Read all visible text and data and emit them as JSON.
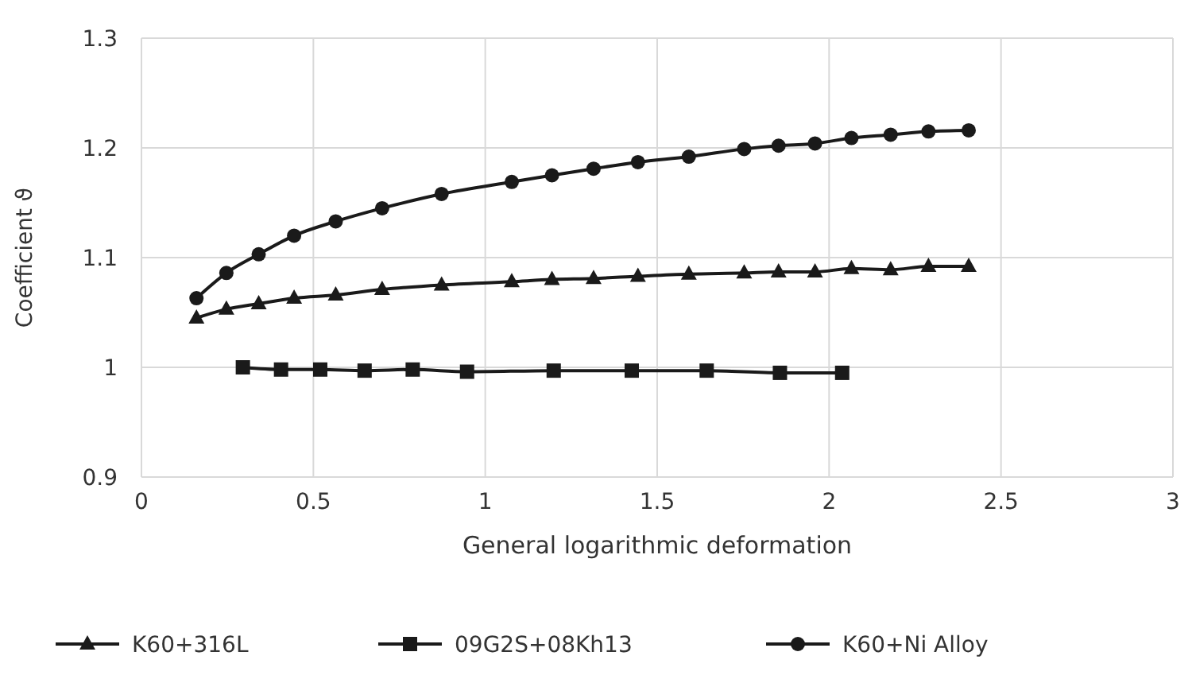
{
  "chart_data": {
    "type": "line",
    "xlabel": "General logarithmic deformation",
    "ylabel": "Coefficient ϑ",
    "xlim": [
      0,
      3
    ],
    "xticks": [
      0,
      0.5,
      1,
      1.5,
      2,
      2.5,
      3
    ],
    "ylim": [
      0.9,
      1.3
    ],
    "yticks": [
      0.9,
      1,
      1.1,
      1.2,
      1.3
    ],
    "grid": true,
    "legend": "bottom",
    "line_style": "solid",
    "series": [
      {
        "name": "K60+316L",
        "color": "#1a1a1a",
        "marker": "triangle",
        "x": [
          0.16,
          0.247,
          0.341,
          0.444,
          0.565,
          0.7,
          0.873,
          1.077,
          1.194,
          1.315,
          1.444,
          1.592,
          1.753,
          1.853,
          1.959,
          2.065,
          2.179,
          2.289,
          2.406
        ],
        "values": [
          1.045,
          1.053,
          1.058,
          1.063,
          1.066,
          1.071,
          1.075,
          1.078,
          1.08,
          1.081,
          1.083,
          1.085,
          1.086,
          1.087,
          1.087,
          1.09,
          1.089,
          1.092,
          1.092
        ]
      },
      {
        "name": "09G2S+08Kh13",
        "color": "#1a1a1a",
        "marker": "square",
        "x": [
          0.295,
          0.406,
          0.52,
          0.649,
          0.789,
          0.947,
          1.199,
          1.426,
          1.644,
          1.857,
          2.038
        ],
        "values": [
          1.0,
          0.998,
          0.998,
          0.997,
          0.998,
          0.996,
          0.997,
          0.997,
          0.997,
          0.995,
          0.995
        ]
      },
      {
        "name": "K60+Ni Alloy",
        "color": "#1a1a1a",
        "marker": "circle",
        "x": [
          0.16,
          0.247,
          0.341,
          0.444,
          0.565,
          0.7,
          0.873,
          1.077,
          1.194,
          1.315,
          1.444,
          1.592,
          1.753,
          1.853,
          1.959,
          2.065,
          2.179,
          2.289,
          2.406
        ],
        "values": [
          1.063,
          1.086,
          1.103,
          1.12,
          1.133,
          1.145,
          1.158,
          1.169,
          1.175,
          1.181,
          1.187,
          1.192,
          1.199,
          1.202,
          1.204,
          1.209,
          1.212,
          1.215,
          1.216
        ]
      }
    ]
  }
}
